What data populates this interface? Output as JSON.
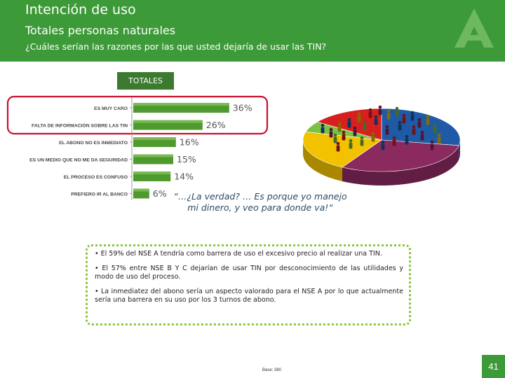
{
  "header": {
    "title": "Intención de uso",
    "subtitle": "Totales personas naturales",
    "question": "¿Cuáles serían las razones por las que usted dejaría de usar las TIN?"
  },
  "chart_header": "TOTALES",
  "chart_data": {
    "type": "bar",
    "orientation": "horizontal",
    "title": "TOTALES",
    "categories": [
      "ES MUY CARO",
      "FALTA DE INFORMACIÓN SOBRE LAS TIN",
      "EL ABONO NO ES INMEDIATO",
      "ES UN MEDIO QUE NO ME DA SEGURIDAD",
      "EL PROCESO ES CONFUSO",
      "PREFIERO IR AL BANCO"
    ],
    "values": [
      36,
      26,
      16,
      15,
      14,
      6
    ],
    "value_labels": [
      "36%",
      "26%",
      "16%",
      "15%",
      "14%",
      "6%"
    ],
    "highlighted": [
      "ES MUY CARO",
      "FALTA DE INFORMACIÓN SOBRE LAS TIN"
    ],
    "bar_color": "#4f9a2e",
    "highlight_color": "#c8102e"
  },
  "pie_colors": [
    "#1f5aa6",
    "#8a2a5f",
    "#f2c200",
    "#7cc242",
    "#d62020"
  ],
  "quote": "“…¿La verdad? … Es porque yo manejo mi dinero, y veo para donde va!“",
  "conclusions": [
    "• El 59% del NSE A tendría como barrera de uso el excesivo precio al realizar una TIN.",
    "• El 57% entre NSE B Y C  dejarían de usar TIN por  desconocimiento de las utilidades y modo de uso del proceso.",
    "• La   inmediatez  del  abono  sería  un  aspecto  valorado  para  el  NSE  A  por  lo  que actualmente sería una barrera  en su uso por los 3 turnos de abono."
  ],
  "footer": {
    "base": "Base: 380",
    "page_number": "41"
  },
  "colors": {
    "header_green": "#3d9a38",
    "dark_green": "#3b7a2f",
    "box_border": "#8cc63f"
  }
}
